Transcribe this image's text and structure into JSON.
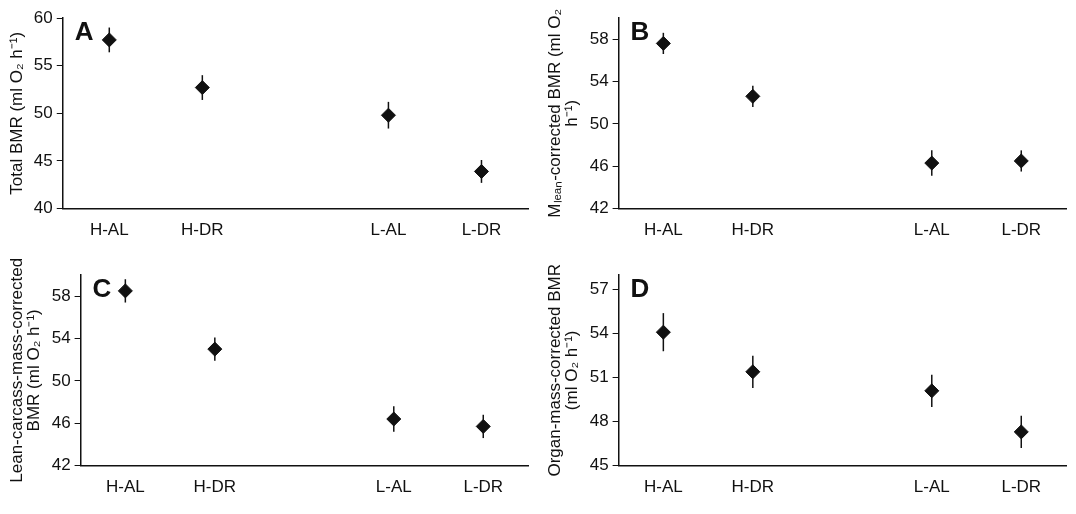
{
  "chart_data": [
    {
      "type": "scatter",
      "title": "A",
      "ylabel": "Total BMR (ml O₂ h⁻¹)",
      "categories": [
        "H-AL",
        "H-DR",
        null,
        "L-AL",
        "L-DR"
      ],
      "series": [
        {
          "color": "#111111",
          "values": [
            57.7,
            52.7,
            null,
            49.8,
            43.9
          ],
          "errors": [
            1.3,
            1.3,
            null,
            1.4,
            1.2
          ]
        }
      ],
      "ylim": [
        40,
        60
      ],
      "yticks": [
        40,
        45,
        50,
        55,
        60
      ],
      "grid": false,
      "legend": false,
      "marker": "diamond"
    },
    {
      "type": "scatter",
      "title": "B",
      "ylabel": "Mₗₑₐₙ-corrected BMR (ml O₂ h⁻¹)",
      "categories": [
        "H-AL",
        "H-DR",
        null,
        "L-AL",
        "L-DR"
      ],
      "series": [
        {
          "color": "#111111",
          "values": [
            57.6,
            52.6,
            null,
            46.3,
            46.5
          ],
          "errors": [
            1.0,
            1.0,
            null,
            1.2,
            1.0
          ]
        }
      ],
      "ylim": [
        42,
        60
      ],
      "yticks": [
        42,
        46,
        50,
        54,
        58
      ],
      "grid": false,
      "legend": false,
      "marker": "diamond"
    },
    {
      "type": "scatter",
      "title": "C",
      "ylabel": "Lean-carcass-mass-corrected BMR (ml O₂ h⁻¹)",
      "categories": [
        "H-AL",
        "H-DR",
        null,
        "L-AL",
        "L-DR"
      ],
      "series": [
        {
          "color": "#111111",
          "values": [
            58.5,
            53.0,
            null,
            46.4,
            45.7
          ],
          "errors": [
            1.1,
            1.1,
            null,
            1.2,
            1.1
          ]
        }
      ],
      "ylim": [
        42,
        60
      ],
      "yticks": [
        42,
        46,
        50,
        54,
        58
      ],
      "grid": false,
      "legend": false,
      "marker": "diamond"
    },
    {
      "type": "scatter",
      "title": "D",
      "ylabel": "Organ-mass-corrected BMR (ml O₂ h⁻¹)",
      "categories": [
        "H-AL",
        "H-DR",
        null,
        "L-AL",
        "L-DR"
      ],
      "series": [
        {
          "color": "#111111",
          "values": [
            54.1,
            51.4,
            null,
            50.1,
            47.3
          ],
          "errors": [
            1.3,
            1.1,
            null,
            1.1,
            1.1
          ]
        }
      ],
      "ylim": [
        45,
        58
      ],
      "yticks": [
        45,
        48,
        51,
        54,
        57
      ],
      "grid": false,
      "legend": false,
      "marker": "diamond"
    }
  ]
}
